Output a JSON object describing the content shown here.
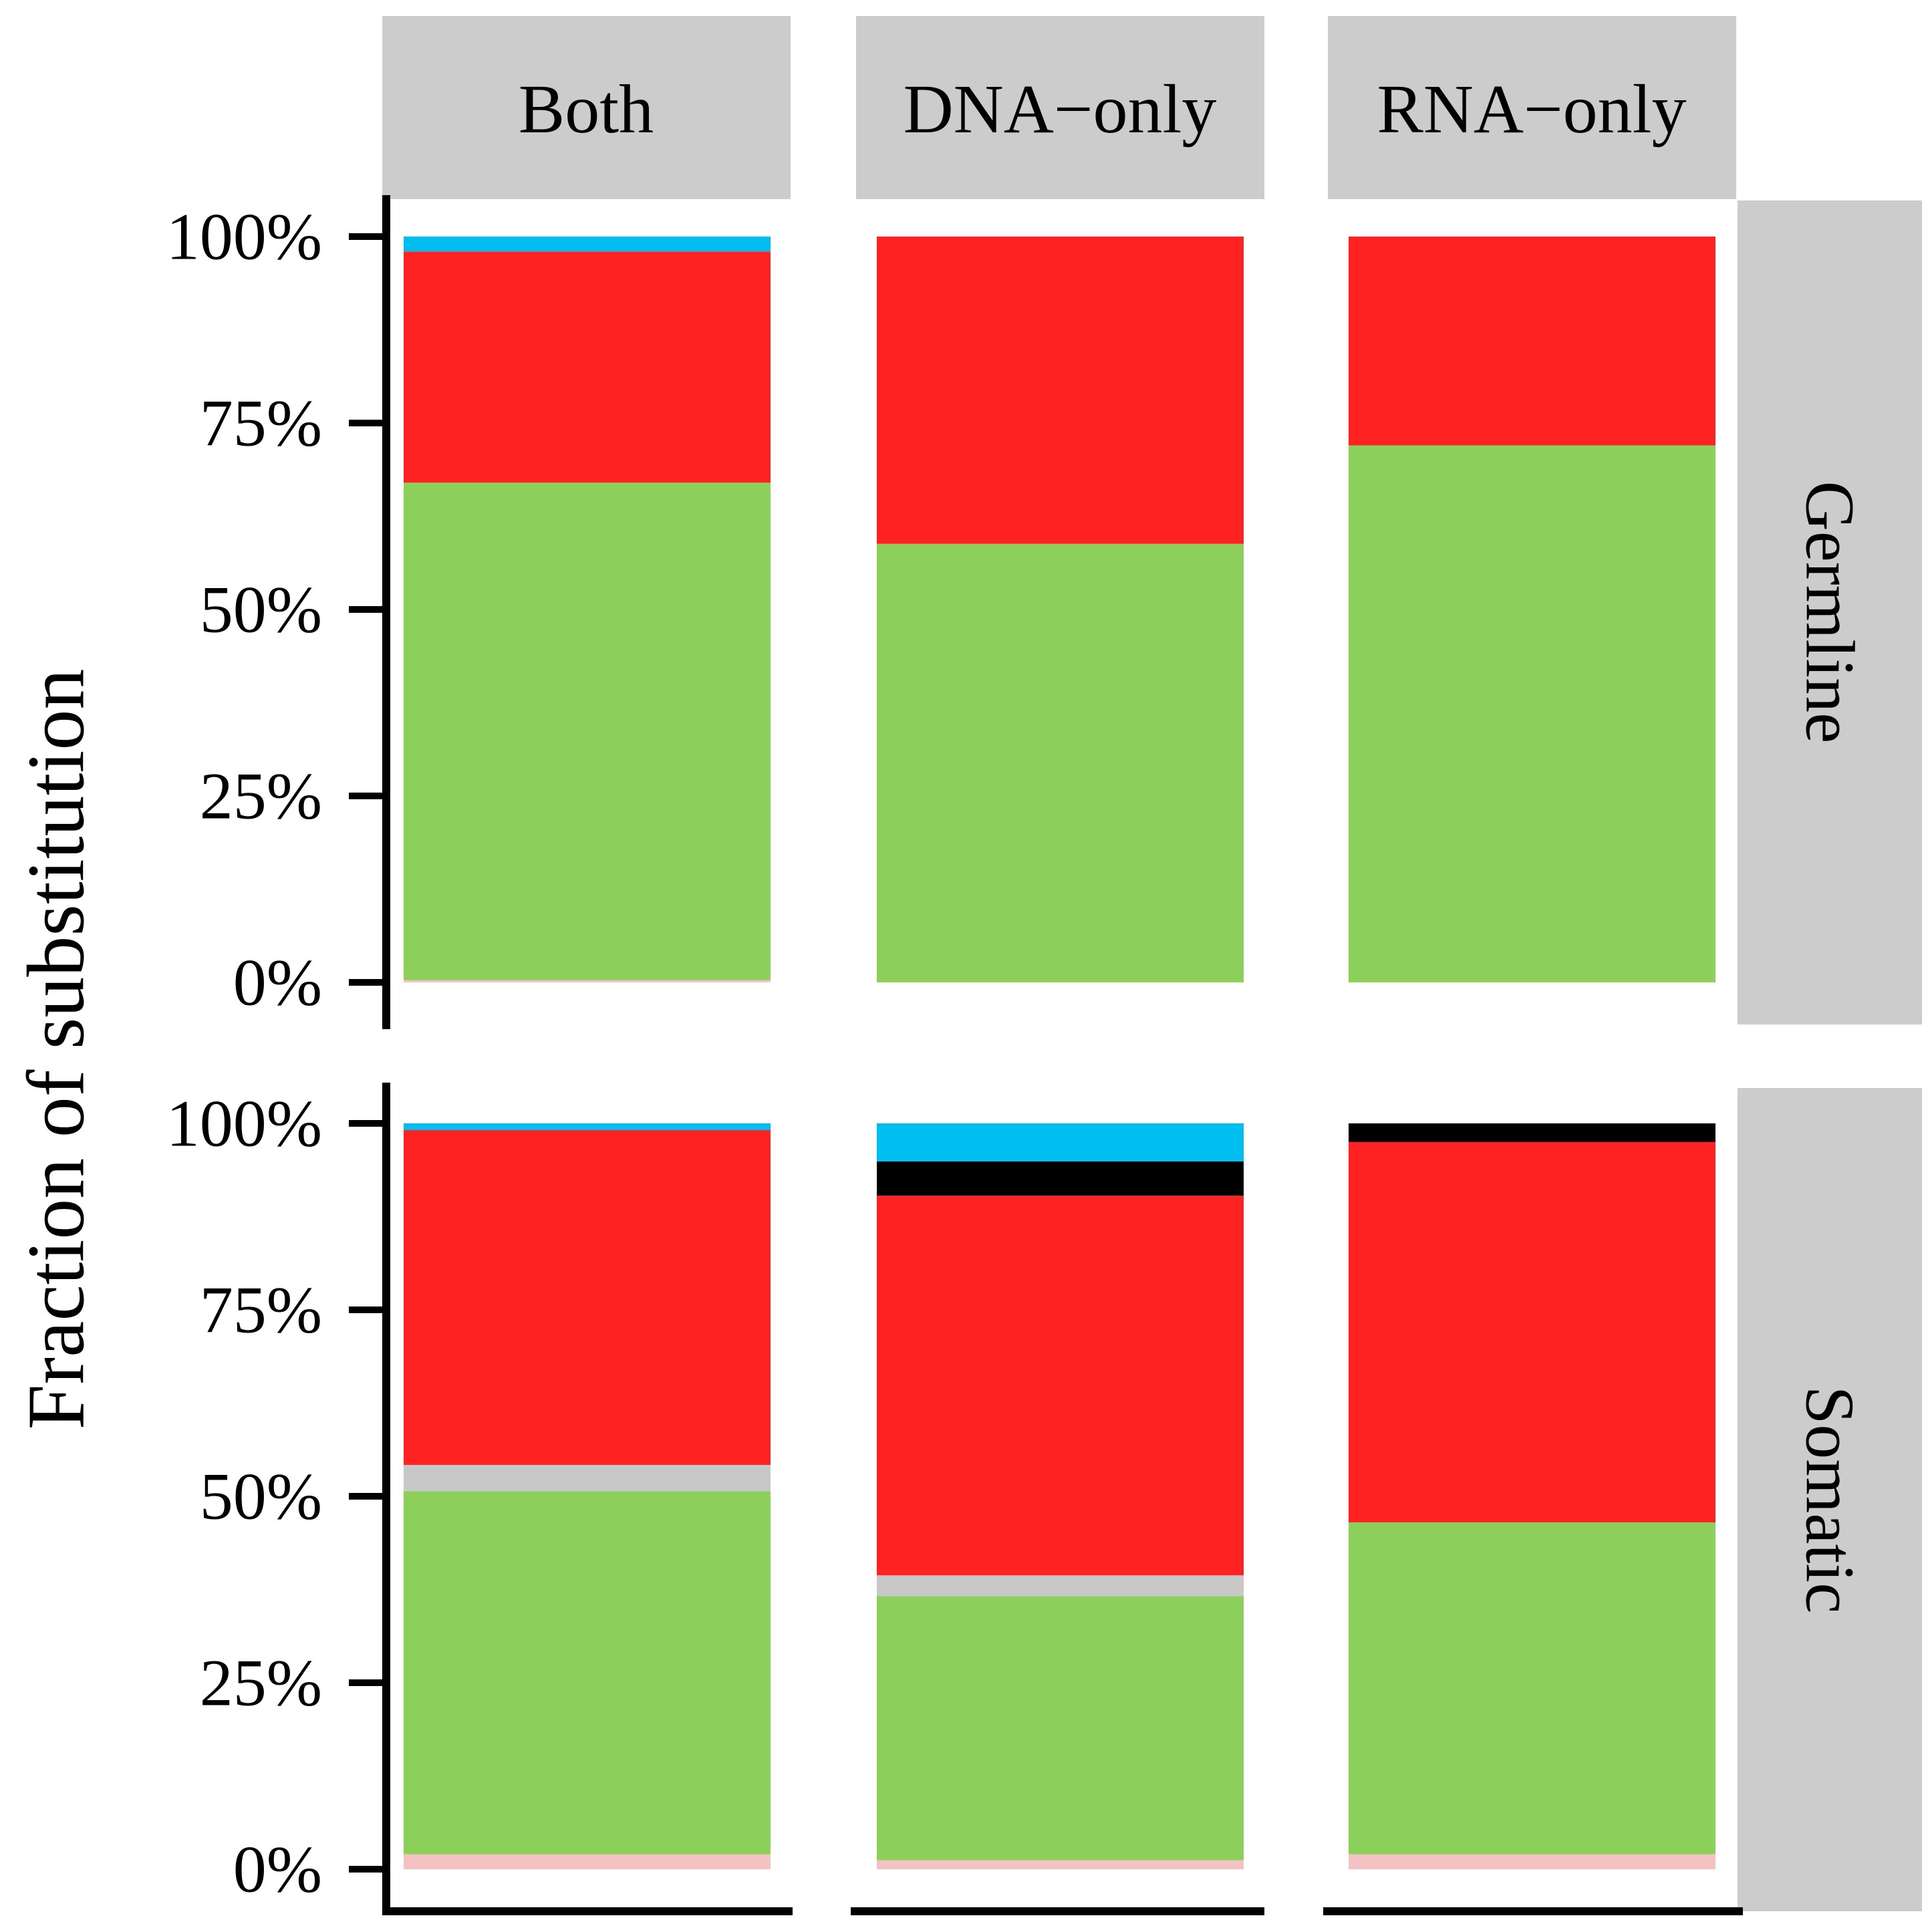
{
  "chart_data": {
    "type": "bar",
    "stacked": true,
    "ylabel": "Fraction of substitution",
    "y_ticks": [
      "0%",
      "25%",
      "50%",
      "75%",
      "100%"
    ],
    "ylim": [
      0,
      1
    ],
    "columns": [
      "Both",
      "DNA−only",
      "RNA−only"
    ],
    "rows": [
      "Germline",
      "Somatic"
    ],
    "colors": {
      "pink": "#f4c2c2",
      "green": "#8ccf5b",
      "gray": "#c8c8c8",
      "red": "#ff2222",
      "black": "#000000",
      "blue": "#00bff0"
    },
    "strip_color": "#cccccc",
    "panels": [
      {
        "row": "Germline",
        "column": "Both",
        "segments": [
          {
            "color": "pink",
            "value": 0.003
          },
          {
            "color": "green",
            "value": 0.667
          },
          {
            "color": "red",
            "value": 0.31
          },
          {
            "color": "blue",
            "value": 0.02
          }
        ]
      },
      {
        "row": "Germline",
        "column": "DNA−only",
        "segments": [
          {
            "color": "green",
            "value": 0.588
          },
          {
            "color": "red",
            "value": 0.412
          }
        ]
      },
      {
        "row": "Germline",
        "column": "RNA−only",
        "segments": [
          {
            "color": "green",
            "value": 0.72
          },
          {
            "color": "red",
            "value": 0.28
          }
        ]
      },
      {
        "row": "Somatic",
        "column": "Both",
        "segments": [
          {
            "color": "pink",
            "value": 0.02
          },
          {
            "color": "green",
            "value": 0.487
          },
          {
            "color": "gray",
            "value": 0.035
          },
          {
            "color": "red",
            "value": 0.449
          },
          {
            "color": "blue",
            "value": 0.009
          }
        ]
      },
      {
        "row": "Somatic",
        "column": "DNA−only",
        "segments": [
          {
            "color": "pink",
            "value": 0.012
          },
          {
            "color": "green",
            "value": 0.354
          },
          {
            "color": "gray",
            "value": 0.028
          },
          {
            "color": "red",
            "value": 0.509
          },
          {
            "color": "black",
            "value": 0.046
          },
          {
            "color": "blue",
            "value": 0.051
          }
        ]
      },
      {
        "row": "Somatic",
        "column": "RNA−only",
        "segments": [
          {
            "color": "pink",
            "value": 0.02
          },
          {
            "color": "green",
            "value": 0.445
          },
          {
            "color": "red",
            "value": 0.51
          },
          {
            "color": "black",
            "value": 0.025
          }
        ]
      }
    ]
  }
}
